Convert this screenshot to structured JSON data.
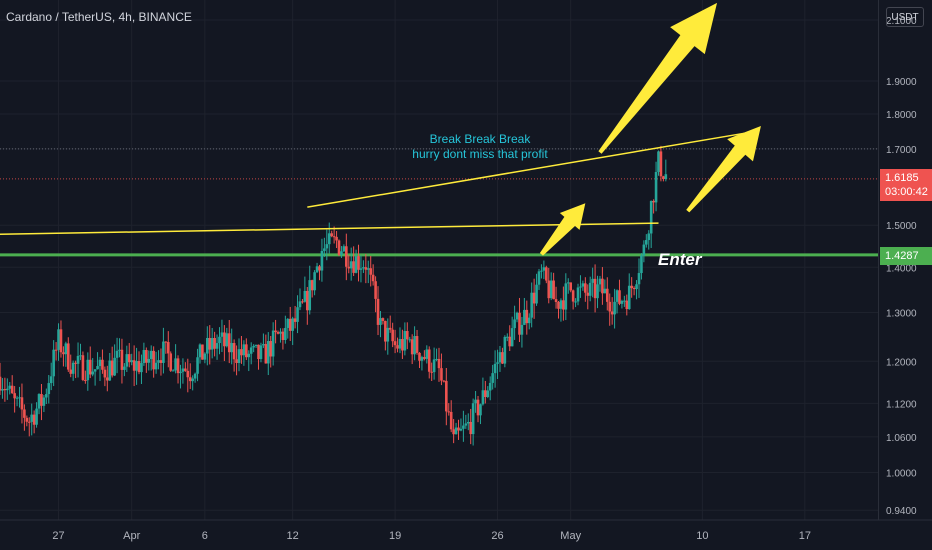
{
  "header": {
    "title": "Cardano / TetherUS, 4h, BINANCE"
  },
  "price_axis": {
    "currency_label": "USDT"
  },
  "annotations": {
    "line1": "Break Break Break",
    "line2": "hurry dont miss that profit",
    "enter": "Enter"
  },
  "tags": {
    "current_price": "1.6185",
    "countdown": "03:00:42",
    "support_price": "1.4287"
  },
  "colors": {
    "background": "#131722",
    "up": "#26a69a",
    "down": "#ef5350",
    "trendline": "#ffeb3b",
    "support": "#4caf50",
    "annotation_text": "#26c6da",
    "arrow": "#ffeb3b"
  },
  "chart_data": {
    "type": "candlestick",
    "y_scale": "log",
    "ylim": [
      0.925,
      2.17
    ],
    "xlim": [
      "2021-03-23",
      "2021-05-22"
    ],
    "y_ticks": [
      2.1,
      1.9,
      1.8,
      1.7,
      1.5,
      1.4,
      1.3,
      1.2,
      1.12,
      1.06,
      1.0,
      0.94
    ],
    "x_ticks": [
      {
        "label": "27",
        "date": "2021-03-27"
      },
      {
        "label": "Apr",
        "date": "2021-04-01"
      },
      {
        "label": "6",
        "date": "2021-04-06"
      },
      {
        "label": "12",
        "date": "2021-04-12"
      },
      {
        "label": "19",
        "date": "2021-04-19"
      },
      {
        "label": "26",
        "date": "2021-04-26"
      },
      {
        "label": "May",
        "date": "2021-05-01"
      },
      {
        "label": "10",
        "date": "2021-05-10"
      },
      {
        "label": "17",
        "date": "2021-05-17"
      }
    ],
    "price_path": [
      [
        "2021-03-23",
        1.17
      ],
      [
        "2021-03-24",
        1.12
      ],
      [
        "2021-03-25",
        1.09
      ],
      [
        "2021-03-26",
        1.13
      ],
      [
        "2021-03-27",
        1.24
      ],
      [
        "2021-03-28",
        1.19
      ],
      [
        "2021-03-29",
        1.19
      ],
      [
        "2021-03-30",
        1.18
      ],
      [
        "2021-03-31",
        1.2
      ],
      [
        "2021-04-01",
        1.19
      ],
      [
        "2021-04-02",
        1.2
      ],
      [
        "2021-04-03",
        1.22
      ],
      [
        "2021-04-04",
        1.2
      ],
      [
        "2021-04-05",
        1.18
      ],
      [
        "2021-04-06",
        1.22
      ],
      [
        "2021-04-07",
        1.24
      ],
      [
        "2021-04-08",
        1.22
      ],
      [
        "2021-04-09",
        1.21
      ],
      [
        "2021-04-10",
        1.21
      ],
      [
        "2021-04-11",
        1.25
      ],
      [
        "2021-04-12",
        1.27
      ],
      [
        "2021-04-13",
        1.33
      ],
      [
        "2021-04-14",
        1.44
      ],
      [
        "2021-04-15",
        1.46
      ],
      [
        "2021-04-16",
        1.42
      ],
      [
        "2021-04-17",
        1.41
      ],
      [
        "2021-04-18",
        1.27
      ],
      [
        "2021-04-19",
        1.23
      ],
      [
        "2021-04-20",
        1.24
      ],
      [
        "2021-04-21",
        1.21
      ],
      [
        "2021-04-22",
        1.18
      ],
      [
        "2021-04-23",
        1.05
      ],
      [
        "2021-04-24",
        1.08
      ],
      [
        "2021-04-25",
        1.13
      ],
      [
        "2021-04-26",
        1.2
      ],
      [
        "2021-04-27",
        1.26
      ],
      [
        "2021-04-28",
        1.3
      ],
      [
        "2021-04-29",
        1.38
      ],
      [
        "2021-04-30",
        1.32
      ],
      [
        "2021-05-01",
        1.35
      ],
      [
        "2021-05-02",
        1.34
      ],
      [
        "2021-05-03",
        1.35
      ],
      [
        "2021-05-04",
        1.32
      ],
      [
        "2021-05-05",
        1.34
      ],
      [
        "2021-05-06",
        1.44
      ],
      [
        "2021-05-07",
        1.66
      ],
      [
        "2021-05-07T12",
        1.63
      ]
    ],
    "horizontal_lines": [
      {
        "price": 1.4287,
        "role": "support",
        "color": "#4caf50"
      },
      {
        "price": 1.7,
        "role": "dotted",
        "color": "#787b86"
      },
      {
        "price": 1.6185,
        "role": "current",
        "color": "#ef5350"
      }
    ],
    "trend_lines": [
      {
        "from": [
          "2021-03-23",
          1.478
        ],
        "to": [
          "2021-05-07",
          1.505
        ]
      },
      {
        "from": [
          "2021-04-13",
          1.545
        ],
        "to": [
          "2021-05-13",
          1.745
        ]
      }
    ],
    "arrows": [
      {
        "from": [
          "2021-05-03",
          1.69
        ],
        "to": [
          "2021-05-11",
          2.16
        ],
        "size": "large"
      },
      {
        "from": [
          "2021-04-29",
          1.43
        ],
        "to": [
          "2021-05-02",
          1.555
        ],
        "size": "small"
      },
      {
        "from": [
          "2021-05-09",
          1.535
        ],
        "to": [
          "2021-05-14",
          1.765
        ],
        "size": "medium"
      }
    ]
  }
}
